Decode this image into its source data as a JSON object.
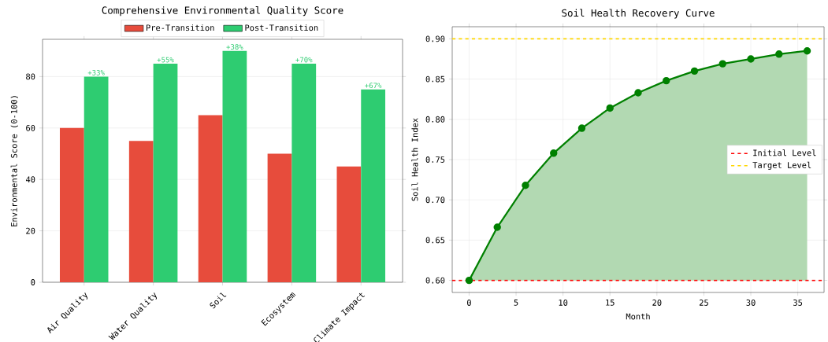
{
  "chart_data": [
    {
      "type": "bar",
      "title": "Comprehensive Environmental Quality Score",
      "ylabel": "Environmental Score (0-100)",
      "categories": [
        "Air Quality",
        "Water Quality",
        "Soil",
        "Ecosystem",
        "Climate Impact"
      ],
      "series": [
        {
          "name": "Pre-Transition",
          "color": "#e74c3c",
          "values": [
            60,
            55,
            65,
            50,
            45
          ]
        },
        {
          "name": "Post-Transition",
          "color": "#2ecc71",
          "values": [
            80,
            85,
            90,
            85,
            75
          ]
        }
      ],
      "ylim": [
        0,
        94.5
      ],
      "yticks": [
        0,
        20,
        40,
        60,
        80
      ],
      "grid": "y",
      "legend": "top",
      "annotations": [
        {
          "text": "+33%",
          "x": "Air Quality",
          "y": 80
        },
        {
          "text": "+55%",
          "x": "Water Quality",
          "y": 85
        },
        {
          "text": "+38%",
          "x": "Soil",
          "y": 90
        },
        {
          "text": "+70%",
          "x": "Ecosystem",
          "y": 85
        },
        {
          "text": "+67%",
          "x": "Climate Impact",
          "y": 75
        }
      ]
    },
    {
      "type": "area",
      "title": "Soil Health Recovery Curve",
      "xlabel": "Month",
      "ylabel": "Soil Health Index",
      "x": [
        0,
        3,
        6,
        9,
        12,
        15,
        18,
        21,
        24,
        27,
        30,
        33,
        36
      ],
      "series": [
        {
          "color": "#008000",
          "values": [
            0.6,
            0.666,
            0.718,
            0.758,
            0.789,
            0.814,
            0.833,
            0.848,
            0.86,
            0.869,
            0.875,
            0.881,
            0.885
          ]
        }
      ],
      "marker": "circle",
      "xlim": [
        -1.8,
        37.8
      ],
      "xticks": [
        0,
        5,
        10,
        15,
        20,
        25,
        30,
        35
      ],
      "ylim": [
        0.585,
        0.915
      ],
      "yticks": [
        {
          "value": 0.6,
          "label": "0.60"
        },
        {
          "value": 0.65,
          "label": "0.65"
        },
        {
          "value": 0.7,
          "label": "0.70"
        },
        {
          "value": 0.75,
          "label": "0.75"
        },
        {
          "value": 0.8,
          "label": "0.80"
        },
        {
          "value": 0.85,
          "label": "0.85"
        },
        {
          "value": 0.9,
          "label": "0.90"
        }
      ],
      "grid": true,
      "legend": "center right",
      "ref_lines": [
        {
          "axis": "y",
          "value": 0.6,
          "label": "Initial Level",
          "color": "#ff0000",
          "line_style": "dashed"
        },
        {
          "axis": "y",
          "value": 0.9,
          "label": "Target Level",
          "color": "#ffd700",
          "line_style": "dashed"
        }
      ]
    }
  ]
}
